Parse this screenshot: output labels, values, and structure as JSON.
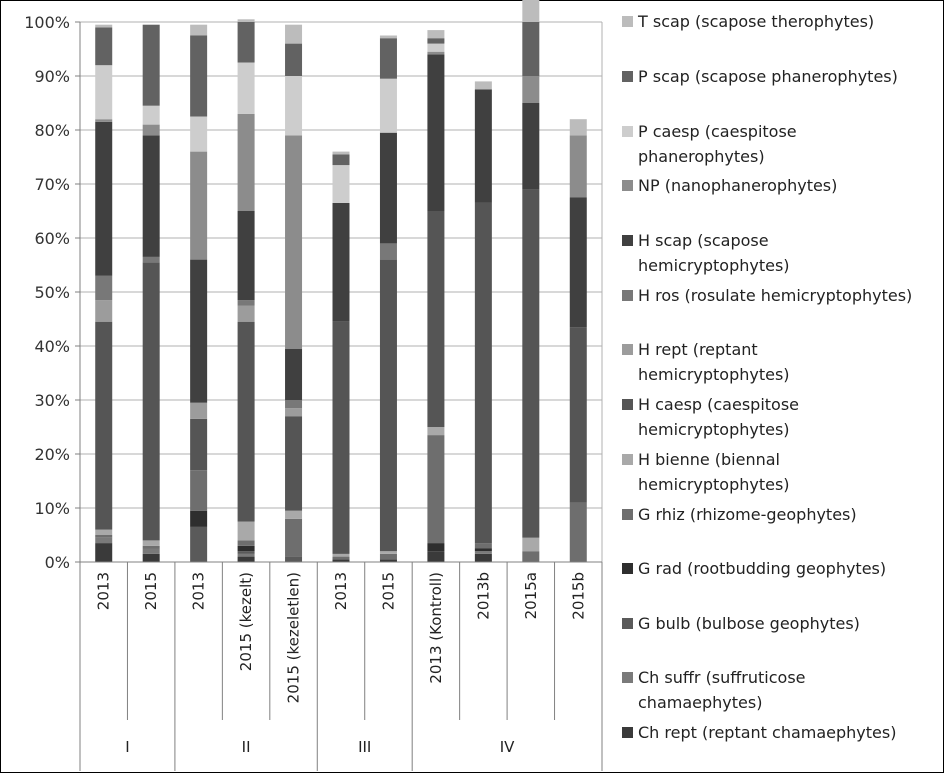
{
  "chart_data": {
    "type": "bar",
    "stacked": true,
    "percent": true,
    "ylim": [
      0,
      100
    ],
    "y_ticks": [
      "0%",
      "10%",
      "20%",
      "30%",
      "40%",
      "50%",
      "60%",
      "70%",
      "80%",
      "90%",
      "100%"
    ],
    "categories": [
      "2013",
      "2015",
      "2013",
      "2015 (kezelt)",
      "2015 (kezeletlen)",
      "2013",
      "2015",
      "2013 (Kontroll)",
      "2013b",
      "2015a",
      "2015b"
    ],
    "groups": [
      {
        "label": "I",
        "count": 2
      },
      {
        "label": "II",
        "count": 3
      },
      {
        "label": "III",
        "count": 2
      },
      {
        "label": "IV",
        "count": 4
      }
    ],
    "legend_position": "right",
    "series": [
      {
        "name": "Ch rept (reptant chamaephytes)",
        "color": "#3a3a3a",
        "values": [
          3.5,
          1.5,
          0,
          1,
          0,
          0.5,
          0.5,
          2,
          1.5,
          0,
          0
        ]
      },
      {
        "name": "Ch suffr (suffruticose chamaephytes)",
        "color": "#7a7a7a",
        "values": [
          1,
          1,
          0,
          0.5,
          0,
          0,
          0,
          0,
          0.5,
          0,
          0
        ]
      },
      {
        "name": "G bulb (bulbose geophytes)",
        "color": "#5a5a5a",
        "values": [
          0,
          0,
          6.5,
          0.5,
          1,
          0,
          0,
          0,
          0,
          0,
          0
        ]
      },
      {
        "name": "G rad (rootbudding geophytes)",
        "color": "#2e2e2e",
        "values": [
          0,
          0,
          3,
          1,
          0,
          0,
          0,
          1.5,
          0.5,
          0,
          0
        ]
      },
      {
        "name": "G rhiz (rhizome-geophytes)",
        "color": "#6e6e6e",
        "values": [
          0.5,
          0.5,
          7.5,
          1,
          7,
          0.5,
          1,
          20,
          1,
          2,
          11
        ]
      },
      {
        "name": "H bienne (biennal hemicryptophytes)",
        "color": "#a9a9a9",
        "values": [
          1,
          1,
          0,
          3.5,
          1.5,
          0.5,
          0.5,
          1.5,
          0,
          2.5,
          0
        ]
      },
      {
        "name": "H caesp (caespitose hemicryptophytes)",
        "color": "#555555",
        "values": [
          38.5,
          51.5,
          9.5,
          37,
          17.5,
          43,
          54,
          40,
          63,
          64.5,
          32.5
        ]
      },
      {
        "name": "H rept (reptant hemicryptophytes)",
        "color": "#9c9c9c",
        "values": [
          4,
          0,
          3,
          3,
          1.5,
          0,
          0,
          0,
          0,
          0,
          0
        ]
      },
      {
        "name": "H ros (rosulate hemicryptophytes)",
        "color": "#787878",
        "values": [
          4.5,
          1,
          0,
          1,
          1.5,
          0,
          3,
          0,
          0,
          0,
          0
        ]
      },
      {
        "name": "H scap (scapose hemicryptophytes)",
        "color": "#404040",
        "values": [
          28.5,
          22.5,
          26.5,
          16.5,
          9.5,
          22,
          20.5,
          29,
          21,
          16,
          24
        ]
      },
      {
        "name": "NP (nanophanerophytes)",
        "color": "#8c8c8c",
        "values": [
          0.5,
          2,
          20,
          18,
          39.5,
          0,
          0,
          0.5,
          0,
          5,
          11.5
        ]
      },
      {
        "name": "P caesp (caespitose phanerophytes)",
        "color": "#cdcdcd",
        "values": [
          10,
          3.5,
          6.5,
          9.5,
          11,
          7,
          10,
          1.5,
          0,
          0,
          0
        ]
      },
      {
        "name": "P scap (scapose phanerophytes)",
        "color": "#626262",
        "values": [
          7,
          15,
          15,
          7.5,
          6,
          2,
          7.5,
          1,
          0,
          10,
          0
        ]
      },
      {
        "name": "T scap (scapose therophytes)",
        "color": "#bcbcbc",
        "values": [
          0.5,
          0,
          2,
          0.5,
          3.5,
          0.5,
          0.5,
          1.5,
          1.5,
          5,
          3
        ]
      }
    ]
  },
  "legend": [
    {
      "lines": [
        "T scap (scapose therophytes)"
      ]
    },
    {
      "lines": [
        "P scap (scapose phanerophytes)"
      ]
    },
    {
      "lines": [
        "P caesp (caespitose",
        "phanerophytes)"
      ]
    },
    {
      "lines": [
        "NP (nanophanerophytes)"
      ]
    },
    {
      "lines": [
        "H scap (scapose",
        "hemicryptophytes)"
      ]
    },
    {
      "lines": [
        "H ros (rosulate hemicryptophytes)"
      ]
    },
    {
      "lines": [
        "H rept (reptant",
        "hemicryptophytes)"
      ]
    },
    {
      "lines": [
        "H caesp (caespitose",
        "hemicryptophytes)"
      ]
    },
    {
      "lines": [
        "H bienne (biennal",
        "hemicryptophytes)"
      ]
    },
    {
      "lines": [
        "G rhiz (rhizome-geophytes)"
      ]
    },
    {
      "lines": [
        "G rad (rootbudding geophytes)"
      ]
    },
    {
      "lines": [
        "G bulb (bulbose geophytes)"
      ]
    },
    {
      "lines": [
        "Ch suffr (suffruticose",
        "chamaephytes)"
      ]
    },
    {
      "lines": [
        "Ch rept (reptant chamaephytes)"
      ]
    }
  ]
}
